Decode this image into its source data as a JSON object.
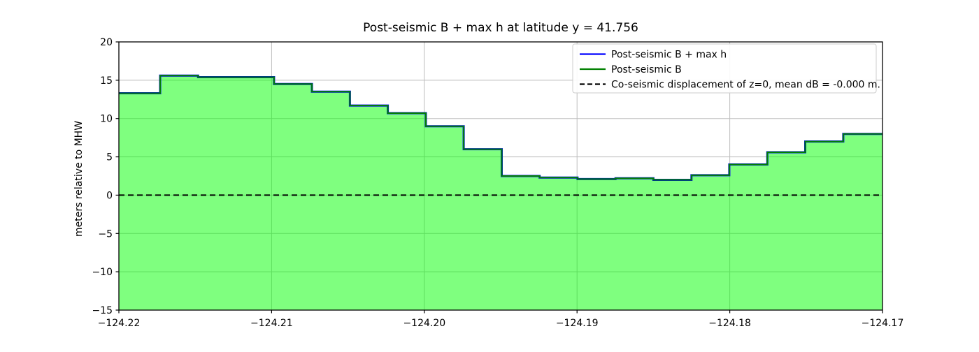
{
  "chart_data": {
    "type": "area",
    "step_mode": "post",
    "title": "Post-seismic B + max h at latitude y = 41.756",
    "xlabel": "",
    "ylabel": "meters relative to MHW",
    "xlim": [
      -124.22,
      -124.17
    ],
    "ylim": [
      -15,
      20
    ],
    "grid": true,
    "grid_color": "#bdbdbd",
    "background_color": "#ffffff",
    "spine_color": "#000000",
    "xticks": {
      "values": [
        -124.22,
        -124.21,
        -124.2,
        -124.19,
        -124.18,
        -124.17
      ],
      "labels": [
        "−124.22",
        "−124.21",
        "−124.20",
        "−124.19",
        "−124.18",
        "−124.17"
      ]
    },
    "yticks": {
      "values": [
        20,
        15,
        10,
        5,
        0,
        -5,
        -10,
        -15
      ],
      "labels": [
        "20",
        "15",
        "10",
        "5",
        "0",
        "−5",
        "−10",
        "−15"
      ]
    },
    "step_edges": [
      -124.22,
      -124.2173,
      -124.21481,
      -124.21233,
      -124.20984,
      -124.20736,
      -124.20487,
      -124.20239,
      -124.1999,
      -124.19742,
      -124.19493,
      -124.19245,
      -124.18997,
      -124.18748,
      -124.185,
      -124.18251,
      -124.18003,
      -124.17754,
      -124.17506,
      -124.17257,
      -124.17
    ],
    "series": [
      {
        "name": "Post-seismic B + max h",
        "color": "#0000ff",
        "linestyle": "solid",
        "values": [
          13.3,
          15.6,
          15.4,
          15.4,
          14.5,
          13.5,
          11.7,
          10.7,
          9.0,
          6.0,
          2.5,
          2.3,
          2.1,
          2.2,
          2.0,
          2.6,
          4.0,
          5.6,
          7.0,
          8.0
        ]
      },
      {
        "name": "Post-seismic B",
        "color": "#008000",
        "linestyle": "solid",
        "fill_color": "#00ff00",
        "fill_opacity": 0.5,
        "values": [
          13.3,
          15.6,
          15.4,
          15.4,
          14.5,
          13.5,
          11.7,
          10.7,
          9.0,
          6.0,
          2.5,
          2.3,
          2.1,
          2.2,
          2.0,
          2.6,
          4.0,
          5.6,
          7.0,
          8.0
        ]
      },
      {
        "name": "Co-seismic displacement of z=0, mean dB = -0.000 m.",
        "color": "#000000",
        "linestyle": "dashed",
        "constant_y": 0
      }
    ],
    "legend": {
      "position": "upper right"
    }
  }
}
